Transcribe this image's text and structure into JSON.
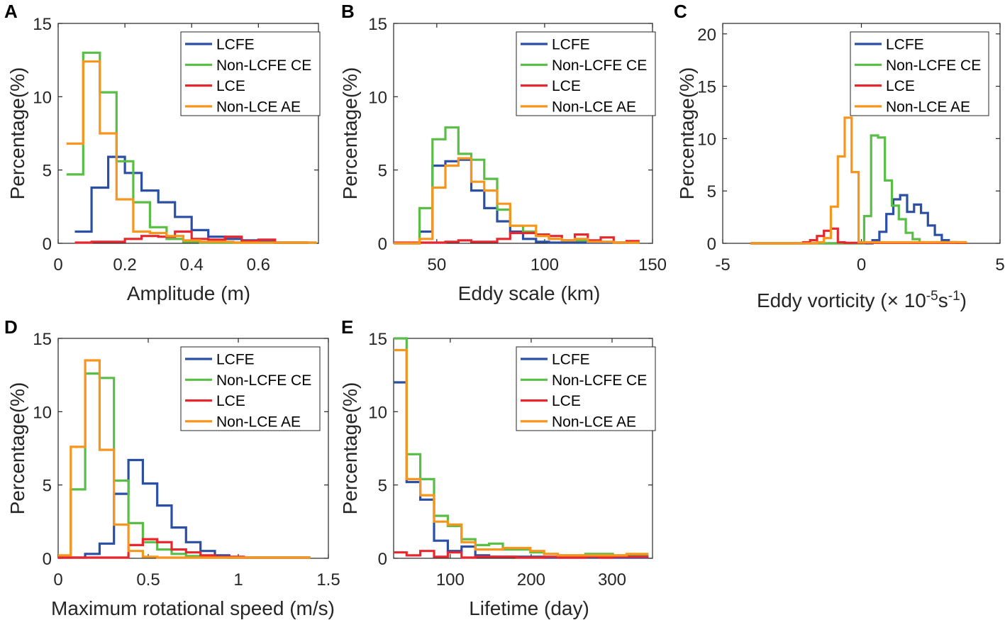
{
  "figure": {
    "legend_labels": [
      "LCFE",
      "Non-LCFE CE",
      "LCE",
      "Non-LCE AE"
    ],
    "colors": {
      "LCFE": "#2a4fa5",
      "Non-LCFE CE": "#58be45",
      "LCE": "#e8262d",
      "Non-LCE AE": "#f7951d"
    }
  },
  "chart_data": [
    {
      "panel": "A",
      "type": "histogram (step)",
      "xlabel": "Amplitude (m)",
      "ylabel": "Percentage(%)",
      "xlim": [
        0,
        0.78
      ],
      "ylim": [
        0,
        15
      ],
      "xticks": [
        0,
        0.2,
        0.4,
        0.6
      ],
      "xtick_labels": [
        "0",
        "0.2",
        "0.4",
        "0.6"
      ],
      "yticks": [
        0,
        5,
        10,
        15
      ],
      "ytick_labels": [
        "0",
        "5",
        "10",
        "15"
      ],
      "series": [
        {
          "name": "LCFE",
          "edges": [
            0.05,
            0.1,
            0.15,
            0.2,
            0.25,
            0.3,
            0.35,
            0.4,
            0.45,
            0.5,
            0.55,
            0.6,
            0.65,
            0.7,
            0.75
          ],
          "values": [
            0.8,
            3.8,
            5.9,
            4.8,
            3.6,
            2.8,
            1.8,
            0.9,
            0.45,
            0.3,
            0.2,
            0.1,
            0.05,
            0.05
          ]
        },
        {
          "name": "Non-LCFE CE",
          "edges": [
            0.025,
            0.075,
            0.125,
            0.175,
            0.225,
            0.275,
            0.325,
            0.375,
            0.425,
            0.475,
            0.525,
            0.575,
            0.625,
            0.675,
            0.725,
            0.775
          ],
          "values": [
            4.7,
            13.0,
            10.3,
            5.6,
            2.8,
            1.1,
            0.3,
            0.1,
            0.05,
            0.05,
            0.05,
            0.05,
            0.05,
            0.05,
            0.05
          ]
        },
        {
          "name": "LCE",
          "edges": [
            0.05,
            0.1,
            0.15,
            0.2,
            0.25,
            0.3,
            0.35,
            0.4,
            0.45,
            0.5,
            0.55,
            0.6,
            0.65,
            0.7,
            0.75
          ],
          "values": [
            0.05,
            0.1,
            0.1,
            0.3,
            0.5,
            0.45,
            0.8,
            0.3,
            0.25,
            0.45,
            0.15,
            0.25,
            0.05,
            0.05
          ]
        },
        {
          "name": "Non-LCE AE",
          "edges": [
            0.025,
            0.075,
            0.125,
            0.175,
            0.225,
            0.275,
            0.325,
            0.375,
            0.425,
            0.475,
            0.525,
            0.575,
            0.625,
            0.675,
            0.725,
            0.775
          ],
          "values": [
            6.8,
            12.4,
            7.5,
            3.0,
            0.8,
            0.7,
            0.5,
            0.2,
            0.1,
            0.1,
            0.05,
            0.05,
            0.05,
            0.05,
            0.05
          ]
        }
      ]
    },
    {
      "panel": "B",
      "type": "histogram (step)",
      "xlabel": "Eddy scale (km)",
      "ylabel": "Percentage(%)",
      "xlim": [
        30,
        150
      ],
      "ylim": [
        0,
        15
      ],
      "xticks": [
        50,
        100,
        150
      ],
      "xtick_labels": [
        "50",
        "100",
        "150"
      ],
      "yticks": [
        0,
        5,
        10,
        15
      ],
      "ytick_labels": [
        "0",
        "5",
        "10",
        "15"
      ],
      "series": [
        {
          "name": "LCFE",
          "edges": [
            30,
            42,
            48,
            54,
            60,
            66,
            72,
            78,
            84,
            90,
            96,
            102,
            108,
            114,
            120,
            126,
            132,
            138,
            144
          ],
          "values": [
            0,
            0.8,
            5.3,
            5.6,
            5.7,
            3.6,
            2.4,
            1.5,
            0.8,
            0.3,
            0.1,
            0.05,
            0.05,
            0.05,
            0.05,
            0.05,
            0.05,
            0.05
          ]
        },
        {
          "name": "Non-LCFE CE",
          "edges": [
            30,
            42,
            48,
            54,
            60,
            66,
            72,
            78,
            84,
            90,
            96,
            102,
            108,
            114,
            120,
            126,
            132,
            138,
            144
          ],
          "values": [
            0,
            2.4,
            7.1,
            7.9,
            6.1,
            5.7,
            4.4,
            2.3,
            1.2,
            0.8,
            0.5,
            0.3,
            0.2,
            0.2,
            0.1,
            0.1,
            0.05,
            0.05
          ]
        },
        {
          "name": "LCE",
          "edges": [
            30,
            42,
            48,
            54,
            60,
            66,
            72,
            78,
            84,
            90,
            96,
            102,
            108,
            114,
            120,
            126,
            132,
            138,
            144
          ],
          "values": [
            0.05,
            0.05,
            0.05,
            0.1,
            0.2,
            0.1,
            0.1,
            0.3,
            0.7,
            0.7,
            0.6,
            0.5,
            0.2,
            0.6,
            0.2,
            0.4,
            0.05,
            0.15
          ]
        },
        {
          "name": "Non-LCE AE",
          "edges": [
            30,
            42,
            48,
            54,
            60,
            66,
            72,
            78,
            84,
            90,
            96,
            102,
            108,
            114,
            120,
            126,
            132,
            138,
            144
          ],
          "values": [
            0,
            0.3,
            3.8,
            5.3,
            5.8,
            4.2,
            3.6,
            2.7,
            1.2,
            1.2,
            0.5,
            0.3,
            0.2,
            0.3,
            0.1,
            0.1,
            0.05,
            0.05
          ]
        }
      ]
    },
    {
      "panel": "C",
      "type": "histogram (step)",
      "xlabel": "Eddy vorticity (× 10",
      "xlabel_exp1": "-5",
      "xlabel_mid": "s",
      "xlabel_exp2": "-1",
      "xlabel_end": ")",
      "ylabel": "Percentage(%)",
      "xlim": [
        -5,
        5
      ],
      "ylim": [
        0,
        21
      ],
      "xticks": [
        -5,
        0,
        5
      ],
      "xtick_labels": [
        "-5",
        "0",
        "5"
      ],
      "yticks": [
        0,
        5,
        10,
        15,
        20
      ],
      "ytick_labels": [
        "0",
        "5",
        "10",
        "15",
        "20"
      ],
      "series": [
        {
          "name": "LCFE",
          "edges": [
            -4,
            0.4,
            0.65,
            0.9,
            1.15,
            1.4,
            1.65,
            1.9,
            2.15,
            2.4,
            2.65,
            2.9,
            3.15,
            3.4,
            3.8
          ],
          "values": [
            0,
            0.3,
            1.1,
            2.8,
            4.2,
            4.6,
            3.0,
            3.7,
            2.9,
            1.7,
            0.8,
            0.3,
            0.1,
            0.05
          ]
        },
        {
          "name": "Non-LCFE CE",
          "edges": [
            -4,
            0.1,
            0.35,
            0.6,
            0.85,
            1.1,
            1.35,
            1.6,
            1.85,
            2.1,
            3.8
          ],
          "values": [
            0,
            2.6,
            10.3,
            10.1,
            6.0,
            3.6,
            2.3,
            1.0,
            0.4,
            0.1
          ]
        },
        {
          "name": "LCE",
          "edges": [
            -4,
            -2.1,
            -1.85,
            -1.6,
            -1.35,
            -1.1,
            -0.85,
            -0.6,
            3.8
          ],
          "values": [
            0,
            0.1,
            0.3,
            0.7,
            1.2,
            1.4,
            0.1,
            0.05
          ]
        },
        {
          "name": "Non-LCE AE",
          "edges": [
            -4,
            -1.6,
            -1.35,
            -1.1,
            -0.85,
            -0.6,
            -0.35,
            -0.1,
            3.8
          ],
          "values": [
            0,
            0.1,
            0.5,
            3.5,
            8.3,
            12.0,
            6.8,
            0.1
          ]
        }
      ]
    },
    {
      "panel": "D",
      "type": "histogram (step)",
      "xlabel": "Maximum rotational speed (m/s)",
      "ylabel": "Percentage(%)",
      "xlim": [
        0,
        1.5
      ],
      "ylim": [
        0,
        15
      ],
      "xticks": [
        0,
        0.5,
        1,
        1.5
      ],
      "xtick_labels": [
        "0",
        "0.5",
        "1",
        "1.5"
      ],
      "yticks": [
        0,
        5,
        10,
        15
      ],
      "ytick_labels": [
        "0",
        "5",
        "10",
        "15"
      ],
      "series": [
        {
          "name": "LCFE",
          "edges": [
            0,
            0.15,
            0.23,
            0.31,
            0.39,
            0.47,
            0.55,
            0.63,
            0.71,
            0.79,
            0.87,
            0.95,
            1.4
          ],
          "values": [
            0.05,
            0.3,
            1.0,
            4.4,
            6.7,
            5.1,
            3.6,
            2.1,
            1.1,
            0.5,
            0.2,
            0.05
          ]
        },
        {
          "name": "Non-LCFE CE",
          "edges": [
            0,
            0.07,
            0.15,
            0.23,
            0.31,
            0.39,
            0.47,
            0.55,
            0.63,
            0.71,
            0.79,
            1.4
          ],
          "values": [
            0.05,
            4.7,
            12.6,
            12.3,
            5.3,
            2.4,
            1.1,
            0.6,
            0.3,
            0.15,
            0.05
          ]
        },
        {
          "name": "LCE",
          "edges": [
            0,
            0.39,
            0.47,
            0.55,
            0.63,
            0.71,
            0.79,
            0.87,
            0.95,
            1.03,
            1.4
          ],
          "values": [
            0.05,
            0.9,
            1.3,
            1.1,
            0.6,
            0.4,
            0.2,
            0.1,
            0.1,
            0.05
          ]
        },
        {
          "name": "Non-LCE AE",
          "edges": [
            0,
            0.07,
            0.15,
            0.23,
            0.31,
            0.39,
            0.47,
            0.55,
            0.63,
            0.71,
            0.79,
            1.4
          ],
          "values": [
            0.2,
            7.6,
            13.5,
            7.4,
            2.3,
            0.5,
            0.1,
            0.05,
            0.05,
            0.05,
            0.05
          ]
        }
      ]
    },
    {
      "panel": "E",
      "type": "histogram (step)",
      "xlabel": "Lifetime (day)",
      "ylabel": "Percentage(%)",
      "xlim": [
        30,
        350
      ],
      "ylim": [
        0,
        15
      ],
      "xticks": [
        100,
        200,
        300
      ],
      "xtick_labels": [
        "100",
        "200",
        "300"
      ],
      "yticks": [
        0,
        5,
        10,
        15
      ],
      "ytick_labels": [
        "0",
        "5",
        "10",
        "15"
      ],
      "series": [
        {
          "name": "LCFE",
          "edges": [
            30,
            46,
            63,
            80,
            97,
            114,
            131,
            148,
            165,
            182,
            199,
            216,
            233,
            250,
            267,
            284,
            301,
            318,
            345
          ],
          "values": [
            12.0,
            5.2,
            4.0,
            1.2,
            0.5,
            0.8,
            0.2,
            0.1,
            0.1,
            0.1,
            0.1,
            0.05,
            0.05,
            0.05,
            0.05,
            0.05,
            0.05,
            0.05
          ]
        },
        {
          "name": "Non-LCFE CE",
          "edges": [
            30,
            46,
            63,
            80,
            97,
            114,
            131,
            148,
            165,
            182,
            199,
            216,
            233,
            250,
            267,
            284,
            301,
            318,
            345
          ],
          "values": [
            15.0,
            7.1,
            5.4,
            2.9,
            2.2,
            1.3,
            0.9,
            1.0,
            0.6,
            0.6,
            0.4,
            0.3,
            0.2,
            0.2,
            0.3,
            0.3,
            0.2,
            0.2
          ]
        },
        {
          "name": "LCE",
          "edges": [
            30,
            46,
            63,
            80,
            97,
            114,
            131,
            148,
            165,
            182,
            199,
            216,
            233,
            250,
            267,
            284,
            301,
            318,
            345
          ],
          "values": [
            0.4,
            0.2,
            0.5,
            0.1,
            0.4,
            0.05,
            0.1,
            0.1,
            0.1,
            0.05,
            0.05,
            0.1,
            0.05,
            0.05,
            0.1,
            0.05,
            0.1,
            0.1
          ]
        },
        {
          "name": "Non-LCE AE",
          "edges": [
            30,
            46,
            63,
            80,
            97,
            114,
            131,
            148,
            165,
            182,
            199,
            216,
            233,
            250,
            267,
            284,
            301,
            318,
            345
          ],
          "values": [
            14.2,
            5.4,
            4.3,
            2.5,
            2.3,
            1.1,
            0.6,
            0.6,
            0.7,
            0.7,
            0.5,
            0.3,
            0.2,
            0.2,
            0.2,
            0.2,
            0.2,
            0.3
          ]
        }
      ]
    }
  ]
}
